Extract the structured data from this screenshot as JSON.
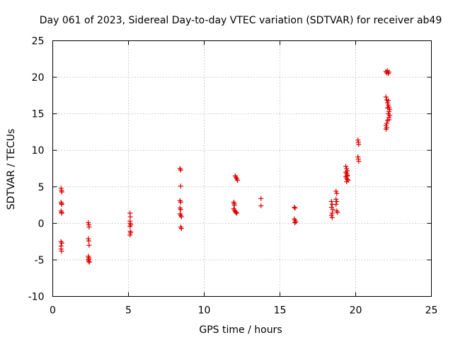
{
  "chart_data": {
    "type": "scatter",
    "title": "Day 061 of 2023, Sidereal Day-to-day VTEC variation (SDTVAR) for receiver ab49",
    "xlabel": "GPS time / hours",
    "ylabel": "SDTVAR / TECUs",
    "xlim": [
      0,
      25
    ],
    "ylim": [
      -10,
      25
    ],
    "xticks": [
      0,
      5,
      10,
      15,
      20,
      25
    ],
    "yticks": [
      -10,
      -5,
      0,
      5,
      10,
      15,
      20,
      25
    ],
    "grid": true,
    "marker": "+",
    "color": "#e00000",
    "series": [
      {
        "name": "SDTVAR",
        "points": [
          [
            0.55,
            4.8
          ],
          [
            0.58,
            4.5
          ],
          [
            0.6,
            4.3
          ],
          [
            0.55,
            2.9
          ],
          [
            0.58,
            2.7
          ],
          [
            0.6,
            2.6
          ],
          [
            0.55,
            1.7
          ],
          [
            0.58,
            1.5
          ],
          [
            0.6,
            1.4
          ],
          [
            0.55,
            -2.5
          ],
          [
            0.6,
            -2.7
          ],
          [
            0.55,
            -3.1
          ],
          [
            0.55,
            -3.5
          ],
          [
            0.58,
            -3.8
          ],
          [
            2.35,
            0.1
          ],
          [
            2.38,
            -0.2
          ],
          [
            2.4,
            -0.5
          ],
          [
            2.35,
            -2.1
          ],
          [
            2.38,
            -2.4
          ],
          [
            2.4,
            -3.0
          ],
          [
            2.35,
            -4.5
          ],
          [
            2.38,
            -4.7
          ],
          [
            2.4,
            -4.9
          ],
          [
            2.35,
            -5.0
          ],
          [
            2.38,
            -5.2
          ],
          [
            2.42,
            -5.3
          ],
          [
            5.1,
            1.4
          ],
          [
            5.12,
            0.9
          ],
          [
            5.1,
            0.3
          ],
          [
            5.12,
            0.0
          ],
          [
            5.15,
            -0.2
          ],
          [
            5.1,
            -0.4
          ],
          [
            5.12,
            -1.1
          ],
          [
            5.15,
            -1.3
          ],
          [
            5.1,
            -1.6
          ],
          [
            8.4,
            7.5
          ],
          [
            8.45,
            7.3
          ],
          [
            8.45,
            5.1
          ],
          [
            8.4,
            3.1
          ],
          [
            8.45,
            2.9
          ],
          [
            8.4,
            2.1
          ],
          [
            8.45,
            1.9
          ],
          [
            8.4,
            1.3
          ],
          [
            8.45,
            1.1
          ],
          [
            8.5,
            0.9
          ],
          [
            8.45,
            -0.5
          ],
          [
            8.5,
            -0.7
          ],
          [
            11.95,
            2.9
          ],
          [
            11.98,
            2.7
          ],
          [
            12.0,
            2.5
          ],
          [
            11.95,
            2.0
          ],
          [
            12.0,
            1.8
          ],
          [
            12.05,
            1.6
          ],
          [
            12.1,
            1.5
          ],
          [
            12.15,
            1.4
          ],
          [
            12.05,
            6.5
          ],
          [
            12.1,
            6.3
          ],
          [
            12.15,
            6.1
          ],
          [
            12.2,
            5.9
          ],
          [
            13.75,
            3.4
          ],
          [
            13.75,
            2.4
          ],
          [
            15.95,
            2.2
          ],
          [
            16.0,
            2.1
          ],
          [
            15.95,
            0.6
          ],
          [
            16.0,
            0.4
          ],
          [
            16.05,
            0.2
          ],
          [
            15.98,
            0.1
          ],
          [
            18.4,
            3.0
          ],
          [
            18.45,
            2.6
          ],
          [
            18.4,
            2.2
          ],
          [
            18.5,
            1.9
          ],
          [
            18.45,
            1.4
          ],
          [
            18.4,
            1.1
          ],
          [
            18.45,
            0.8
          ],
          [
            18.7,
            4.4
          ],
          [
            18.75,
            4.1
          ],
          [
            18.7,
            3.3
          ],
          [
            18.75,
            3.0
          ],
          [
            18.7,
            2.6
          ],
          [
            18.75,
            1.7
          ],
          [
            18.8,
            1.5
          ],
          [
            19.35,
            7.8
          ],
          [
            19.4,
            7.5
          ],
          [
            19.45,
            7.2
          ],
          [
            19.35,
            7.0
          ],
          [
            19.4,
            6.8
          ],
          [
            19.45,
            6.6
          ],
          [
            19.35,
            6.4
          ],
          [
            19.4,
            6.2
          ],
          [
            19.45,
            6.0
          ],
          [
            19.5,
            5.9
          ],
          [
            19.4,
            5.7
          ],
          [
            19.45,
            6.5
          ],
          [
            20.15,
            11.4
          ],
          [
            20.18,
            11.1
          ],
          [
            20.2,
            10.8
          ],
          [
            20.15,
            9.1
          ],
          [
            20.18,
            8.8
          ],
          [
            20.2,
            8.5
          ],
          [
            22.0,
            20.8
          ],
          [
            22.05,
            20.6
          ],
          [
            22.1,
            20.9
          ],
          [
            22.15,
            20.5
          ],
          [
            22.2,
            20.7
          ],
          [
            22.0,
            17.3
          ],
          [
            22.05,
            16.9
          ],
          [
            22.1,
            16.5
          ],
          [
            22.15,
            16.2
          ],
          [
            22.2,
            15.9
          ],
          [
            22.25,
            15.6
          ],
          [
            22.2,
            15.3
          ],
          [
            22.15,
            15.0
          ],
          [
            22.25,
            14.8
          ],
          [
            22.2,
            14.5
          ],
          [
            22.1,
            14.1
          ],
          [
            22.05,
            13.7
          ],
          [
            22.0,
            13.4
          ],
          [
            22.05,
            13.1
          ],
          [
            22.0,
            12.9
          ],
          [
            22.1,
            15.8
          ],
          [
            22.15,
            16.8
          ],
          [
            22.2,
            14.2
          ]
        ]
      }
    ]
  }
}
